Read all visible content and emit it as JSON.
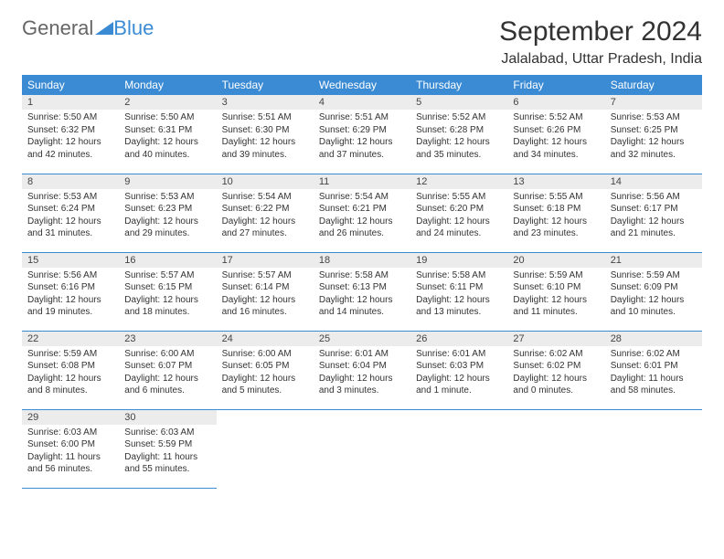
{
  "logo": {
    "text1": "General",
    "text2": "Blue"
  },
  "title": "September 2024",
  "location": "Jalalabad, Uttar Pradesh, India",
  "calendar": {
    "day_header_bg": "#3b8bd4",
    "day_header_fg": "#ffffff",
    "daynum_bg": "#ececec",
    "cell_border": "#3b8bd4",
    "weekdays": [
      "Sunday",
      "Monday",
      "Tuesday",
      "Wednesday",
      "Thursday",
      "Friday",
      "Saturday"
    ],
    "days": [
      {
        "n": "1",
        "sunrise": "5:50 AM",
        "sunset": "6:32 PM",
        "daylight": "12 hours and 42 minutes."
      },
      {
        "n": "2",
        "sunrise": "5:50 AM",
        "sunset": "6:31 PM",
        "daylight": "12 hours and 40 minutes."
      },
      {
        "n": "3",
        "sunrise": "5:51 AM",
        "sunset": "6:30 PM",
        "daylight": "12 hours and 39 minutes."
      },
      {
        "n": "4",
        "sunrise": "5:51 AM",
        "sunset": "6:29 PM",
        "daylight": "12 hours and 37 minutes."
      },
      {
        "n": "5",
        "sunrise": "5:52 AM",
        "sunset": "6:28 PM",
        "daylight": "12 hours and 35 minutes."
      },
      {
        "n": "6",
        "sunrise": "5:52 AM",
        "sunset": "6:26 PM",
        "daylight": "12 hours and 34 minutes."
      },
      {
        "n": "7",
        "sunrise": "5:53 AM",
        "sunset": "6:25 PM",
        "daylight": "12 hours and 32 minutes."
      },
      {
        "n": "8",
        "sunrise": "5:53 AM",
        "sunset": "6:24 PM",
        "daylight": "12 hours and 31 minutes."
      },
      {
        "n": "9",
        "sunrise": "5:53 AM",
        "sunset": "6:23 PM",
        "daylight": "12 hours and 29 minutes."
      },
      {
        "n": "10",
        "sunrise": "5:54 AM",
        "sunset": "6:22 PM",
        "daylight": "12 hours and 27 minutes."
      },
      {
        "n": "11",
        "sunrise": "5:54 AM",
        "sunset": "6:21 PM",
        "daylight": "12 hours and 26 minutes."
      },
      {
        "n": "12",
        "sunrise": "5:55 AM",
        "sunset": "6:20 PM",
        "daylight": "12 hours and 24 minutes."
      },
      {
        "n": "13",
        "sunrise": "5:55 AM",
        "sunset": "6:18 PM",
        "daylight": "12 hours and 23 minutes."
      },
      {
        "n": "14",
        "sunrise": "5:56 AM",
        "sunset": "6:17 PM",
        "daylight": "12 hours and 21 minutes."
      },
      {
        "n": "15",
        "sunrise": "5:56 AM",
        "sunset": "6:16 PM",
        "daylight": "12 hours and 19 minutes."
      },
      {
        "n": "16",
        "sunrise": "5:57 AM",
        "sunset": "6:15 PM",
        "daylight": "12 hours and 18 minutes."
      },
      {
        "n": "17",
        "sunrise": "5:57 AM",
        "sunset": "6:14 PM",
        "daylight": "12 hours and 16 minutes."
      },
      {
        "n": "18",
        "sunrise": "5:58 AM",
        "sunset": "6:13 PM",
        "daylight": "12 hours and 14 minutes."
      },
      {
        "n": "19",
        "sunrise": "5:58 AM",
        "sunset": "6:11 PM",
        "daylight": "12 hours and 13 minutes."
      },
      {
        "n": "20",
        "sunrise": "5:59 AM",
        "sunset": "6:10 PM",
        "daylight": "12 hours and 11 minutes."
      },
      {
        "n": "21",
        "sunrise": "5:59 AM",
        "sunset": "6:09 PM",
        "daylight": "12 hours and 10 minutes."
      },
      {
        "n": "22",
        "sunrise": "5:59 AM",
        "sunset": "6:08 PM",
        "daylight": "12 hours and 8 minutes."
      },
      {
        "n": "23",
        "sunrise": "6:00 AM",
        "sunset": "6:07 PM",
        "daylight": "12 hours and 6 minutes."
      },
      {
        "n": "24",
        "sunrise": "6:00 AM",
        "sunset": "6:05 PM",
        "daylight": "12 hours and 5 minutes."
      },
      {
        "n": "25",
        "sunrise": "6:01 AM",
        "sunset": "6:04 PM",
        "daylight": "12 hours and 3 minutes."
      },
      {
        "n": "26",
        "sunrise": "6:01 AM",
        "sunset": "6:03 PM",
        "daylight": "12 hours and 1 minute."
      },
      {
        "n": "27",
        "sunrise": "6:02 AM",
        "sunset": "6:02 PM",
        "daylight": "12 hours and 0 minutes."
      },
      {
        "n": "28",
        "sunrise": "6:02 AM",
        "sunset": "6:01 PM",
        "daylight": "11 hours and 58 minutes."
      },
      {
        "n": "29",
        "sunrise": "6:03 AM",
        "sunset": "6:00 PM",
        "daylight": "11 hours and 56 minutes."
      },
      {
        "n": "30",
        "sunrise": "6:03 AM",
        "sunset": "5:59 PM",
        "daylight": "11 hours and 55 minutes."
      }
    ],
    "labels": {
      "sunrise": "Sunrise:",
      "sunset": "Sunset:",
      "daylight": "Daylight:"
    }
  }
}
